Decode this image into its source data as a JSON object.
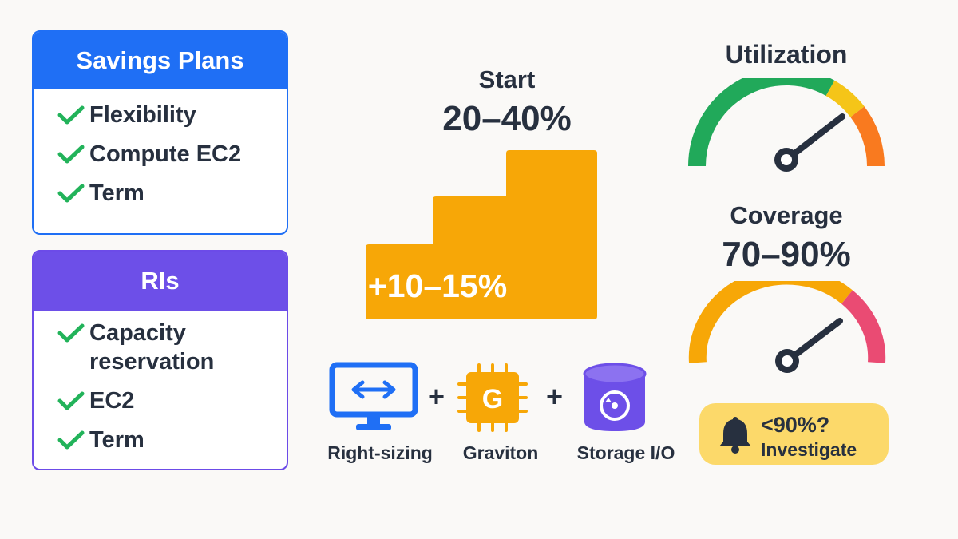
{
  "savings_plans": {
    "title": "Savings Plans",
    "items": [
      "Flexibility",
      "Compute EC2",
      "Term"
    ]
  },
  "ris": {
    "title": "RIs",
    "items": [
      "Capacity reservation",
      "EC2",
      "Term"
    ]
  },
  "start": {
    "label": "Start",
    "value": "20–40%"
  },
  "stairs": {
    "label": "+10–15%"
  },
  "levers": {
    "right_sizing": "Right-sizing",
    "graviton": "Graviton",
    "graviton_letter": "G",
    "storage": "Storage I/O",
    "plus": "+"
  },
  "utilization": {
    "title": "Utilization"
  },
  "coverage": {
    "title": "Coverage",
    "value": "70–90%"
  },
  "alert": {
    "line1": "<90%?",
    "line2": "Investigate"
  },
  "colors": {
    "blue": "#1f6ff5",
    "purple": "#6d4fe8",
    "check_green": "#22b35a",
    "orange": "#f7a707",
    "gauge_green": "#21a95a",
    "gauge_yellow": "#f5c518",
    "gauge_orange": "#f97a1f",
    "gauge_pink": "#ea4b73",
    "badge": "#fcd96a",
    "dark": "#27303f"
  }
}
